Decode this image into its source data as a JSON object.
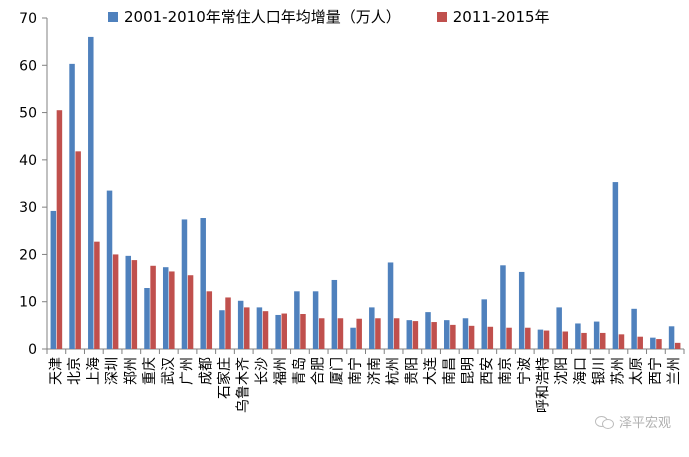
{
  "chart_data": {
    "type": "bar",
    "title": "",
    "xlabel": "",
    "ylabel": "",
    "ylim": [
      0,
      70
    ],
    "yticks": [
      0,
      10,
      20,
      30,
      40,
      50,
      60,
      70
    ],
    "grid": false,
    "legend_position": "top",
    "categories": [
      "天津",
      "北京",
      "上海",
      "深圳",
      "郑州",
      "重庆",
      "武汉",
      "广州",
      "成都",
      "石家庄",
      "乌鲁木齐",
      "长沙",
      "福州",
      "青岛",
      "合肥",
      "厦门",
      "南宁",
      "济南",
      "杭州",
      "贵阳",
      "大连",
      "南昌",
      "昆明",
      "西安",
      "南京",
      "宁波",
      "呼和浩特",
      "沈阳",
      "海口",
      "银川",
      "苏州",
      "太原",
      "西宁",
      "兰州"
    ],
    "series": [
      {
        "name": "2001-2010年常住人口年均增量（万人）",
        "color": "#4F81BD",
        "values": [
          29.2,
          60.3,
          66.0,
          33.5,
          19.7,
          12.9,
          17.3,
          27.4,
          27.7,
          8.2,
          10.2,
          8.8,
          7.2,
          12.2,
          12.2,
          14.6,
          4.5,
          8.8,
          18.3,
          6.1,
          7.8,
          6.1,
          6.5,
          10.5,
          17.7,
          16.3,
          4.1,
          8.8,
          5.4,
          5.8,
          35.3,
          8.5,
          2.4,
          4.8
        ]
      },
      {
        "name": "2011-2015年",
        "color": "#C0504D",
        "values": [
          50.5,
          41.8,
          22.7,
          20.0,
          18.8,
          17.6,
          16.4,
          15.6,
          12.2,
          10.9,
          8.8,
          8.0,
          7.5,
          7.4,
          6.5,
          6.5,
          6.4,
          6.5,
          6.5,
          5.9,
          5.7,
          5.1,
          4.9,
          4.7,
          4.5,
          4.5,
          3.9,
          3.7,
          3.4,
          3.4,
          3.1,
          2.6,
          2.1,
          1.3
        ]
      }
    ]
  },
  "watermark": {
    "icon": "wechat-icon",
    "text": "泽平宏观"
  }
}
